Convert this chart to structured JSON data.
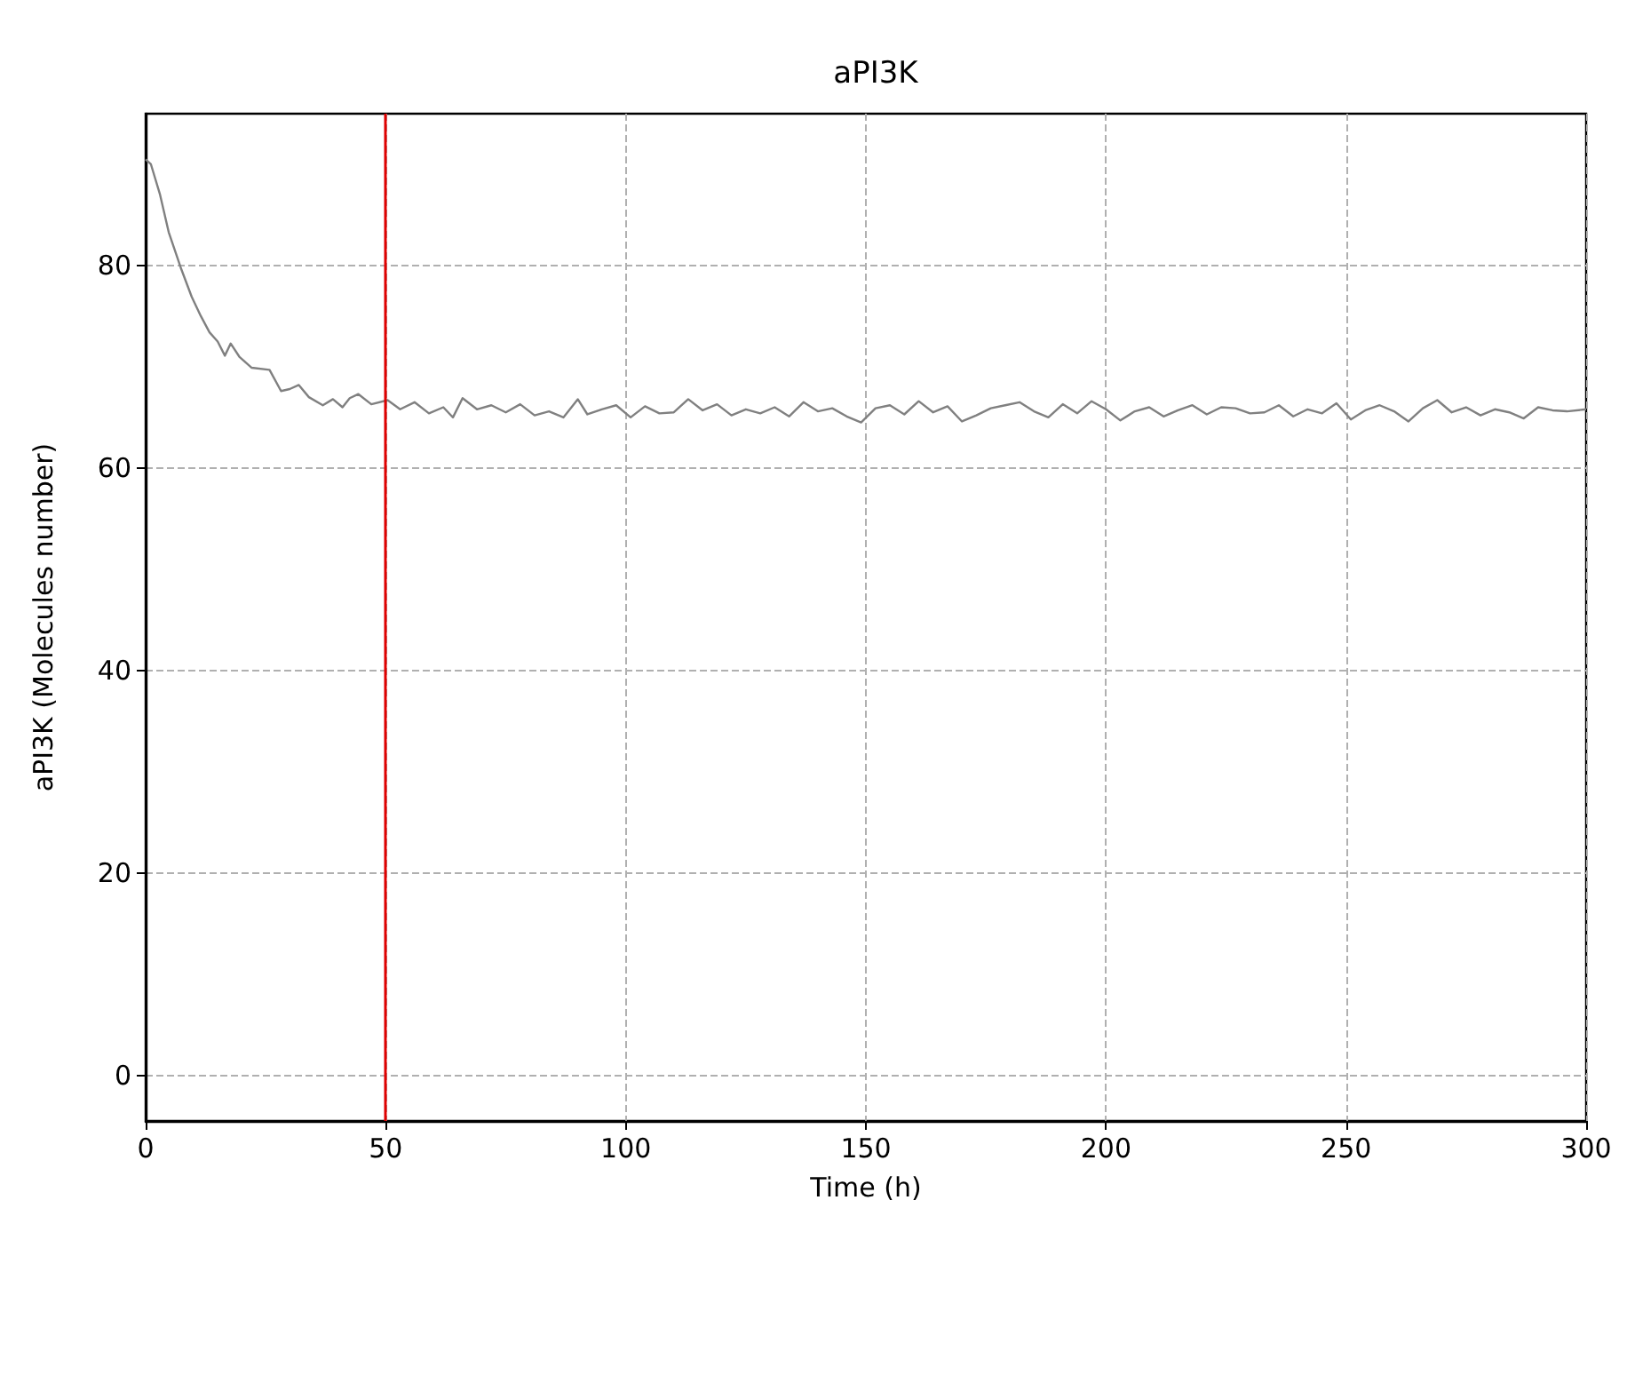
{
  "chart_data": {
    "type": "line",
    "title": "aPI3K",
    "xlabel": "Time (h)",
    "ylabel": "aPI3K (Molecules number)",
    "x": [
      0,
      1.1,
      3,
      4.8,
      7.3,
      9.6,
      11.5,
      13.3,
      15,
      16.5,
      17.7,
      19.5,
      22.1,
      25.8,
      28.2,
      30,
      31.9,
      34,
      36.9,
      39,
      41,
      42.5,
      44.3,
      47,
      50.4,
      53,
      56,
      59,
      62,
      64,
      66,
      69,
      72,
      75,
      78,
      81,
      84,
      87,
      90,
      92,
      95,
      98,
      101,
      104,
      107,
      110,
      113,
      116,
      119,
      122,
      125,
      128,
      131,
      134,
      137,
      140,
      143,
      146,
      149,
      152,
      155,
      158,
      161,
      164,
      167,
      170,
      173,
      176,
      179,
      182,
      185,
      188,
      191,
      194,
      197,
      200,
      203,
      206,
      209,
      212,
      215,
      218,
      221,
      224,
      227,
      230,
      233,
      236,
      239,
      242,
      245,
      248,
      251,
      254,
      257,
      260,
      263,
      266,
      269,
      272,
      275,
      278,
      281,
      284,
      287,
      290,
      293,
      296,
      300
    ],
    "series": [
      {
        "color": "#808080",
        "values": [
          90.5,
          90.0,
          87.0,
          83.3,
          79.8,
          76.9,
          75.0,
          73.4,
          72.5,
          71.1,
          72.3,
          71.0,
          69.9,
          69.7,
          67.6,
          67.8,
          68.2,
          67.0,
          66.2,
          66.8,
          66.0,
          66.9,
          67.3,
          66.3,
          66.7,
          65.8,
          66.5,
          65.4,
          66.0,
          65.0,
          66.9,
          65.8,
          66.2,
          65.5,
          66.3,
          65.2,
          65.6,
          65.0,
          66.8,
          65.3,
          65.8,
          66.2,
          65.0,
          66.1,
          65.4,
          65.5,
          66.8,
          65.7,
          66.3,
          65.2,
          65.8,
          65.4,
          66.0,
          65.1,
          66.5,
          65.6,
          65.9,
          65.1,
          64.5,
          65.9,
          66.2,
          65.3,
          66.6,
          65.5,
          66.1,
          64.6,
          65.2,
          65.9,
          66.2,
          66.5,
          65.6,
          65.0,
          66.3,
          65.4,
          66.6,
          65.8,
          64.7,
          65.6,
          66.0,
          65.1,
          65.7,
          66.2,
          65.3,
          66.0,
          65.9,
          65.4,
          65.5,
          66.2,
          65.1,
          65.8,
          65.4,
          66.4,
          64.8,
          65.7,
          66.2,
          65.6,
          64.6,
          65.9,
          66.7,
          65.5,
          66.0,
          65.2,
          65.8,
          65.5,
          64.9,
          66.0,
          65.7,
          65.6,
          65.8
        ]
      }
    ],
    "xlim": [
      0,
      300
    ],
    "ylim": [
      -4.5,
      95
    ],
    "xticks": [
      0,
      50,
      100,
      150,
      200,
      250,
      300
    ],
    "yticks": [
      0,
      20,
      40,
      60,
      80
    ],
    "grid": true,
    "ref_lines": [
      {
        "axis": "x",
        "value": 50,
        "color": "#e00000",
        "line_style": "solid"
      }
    ]
  }
}
